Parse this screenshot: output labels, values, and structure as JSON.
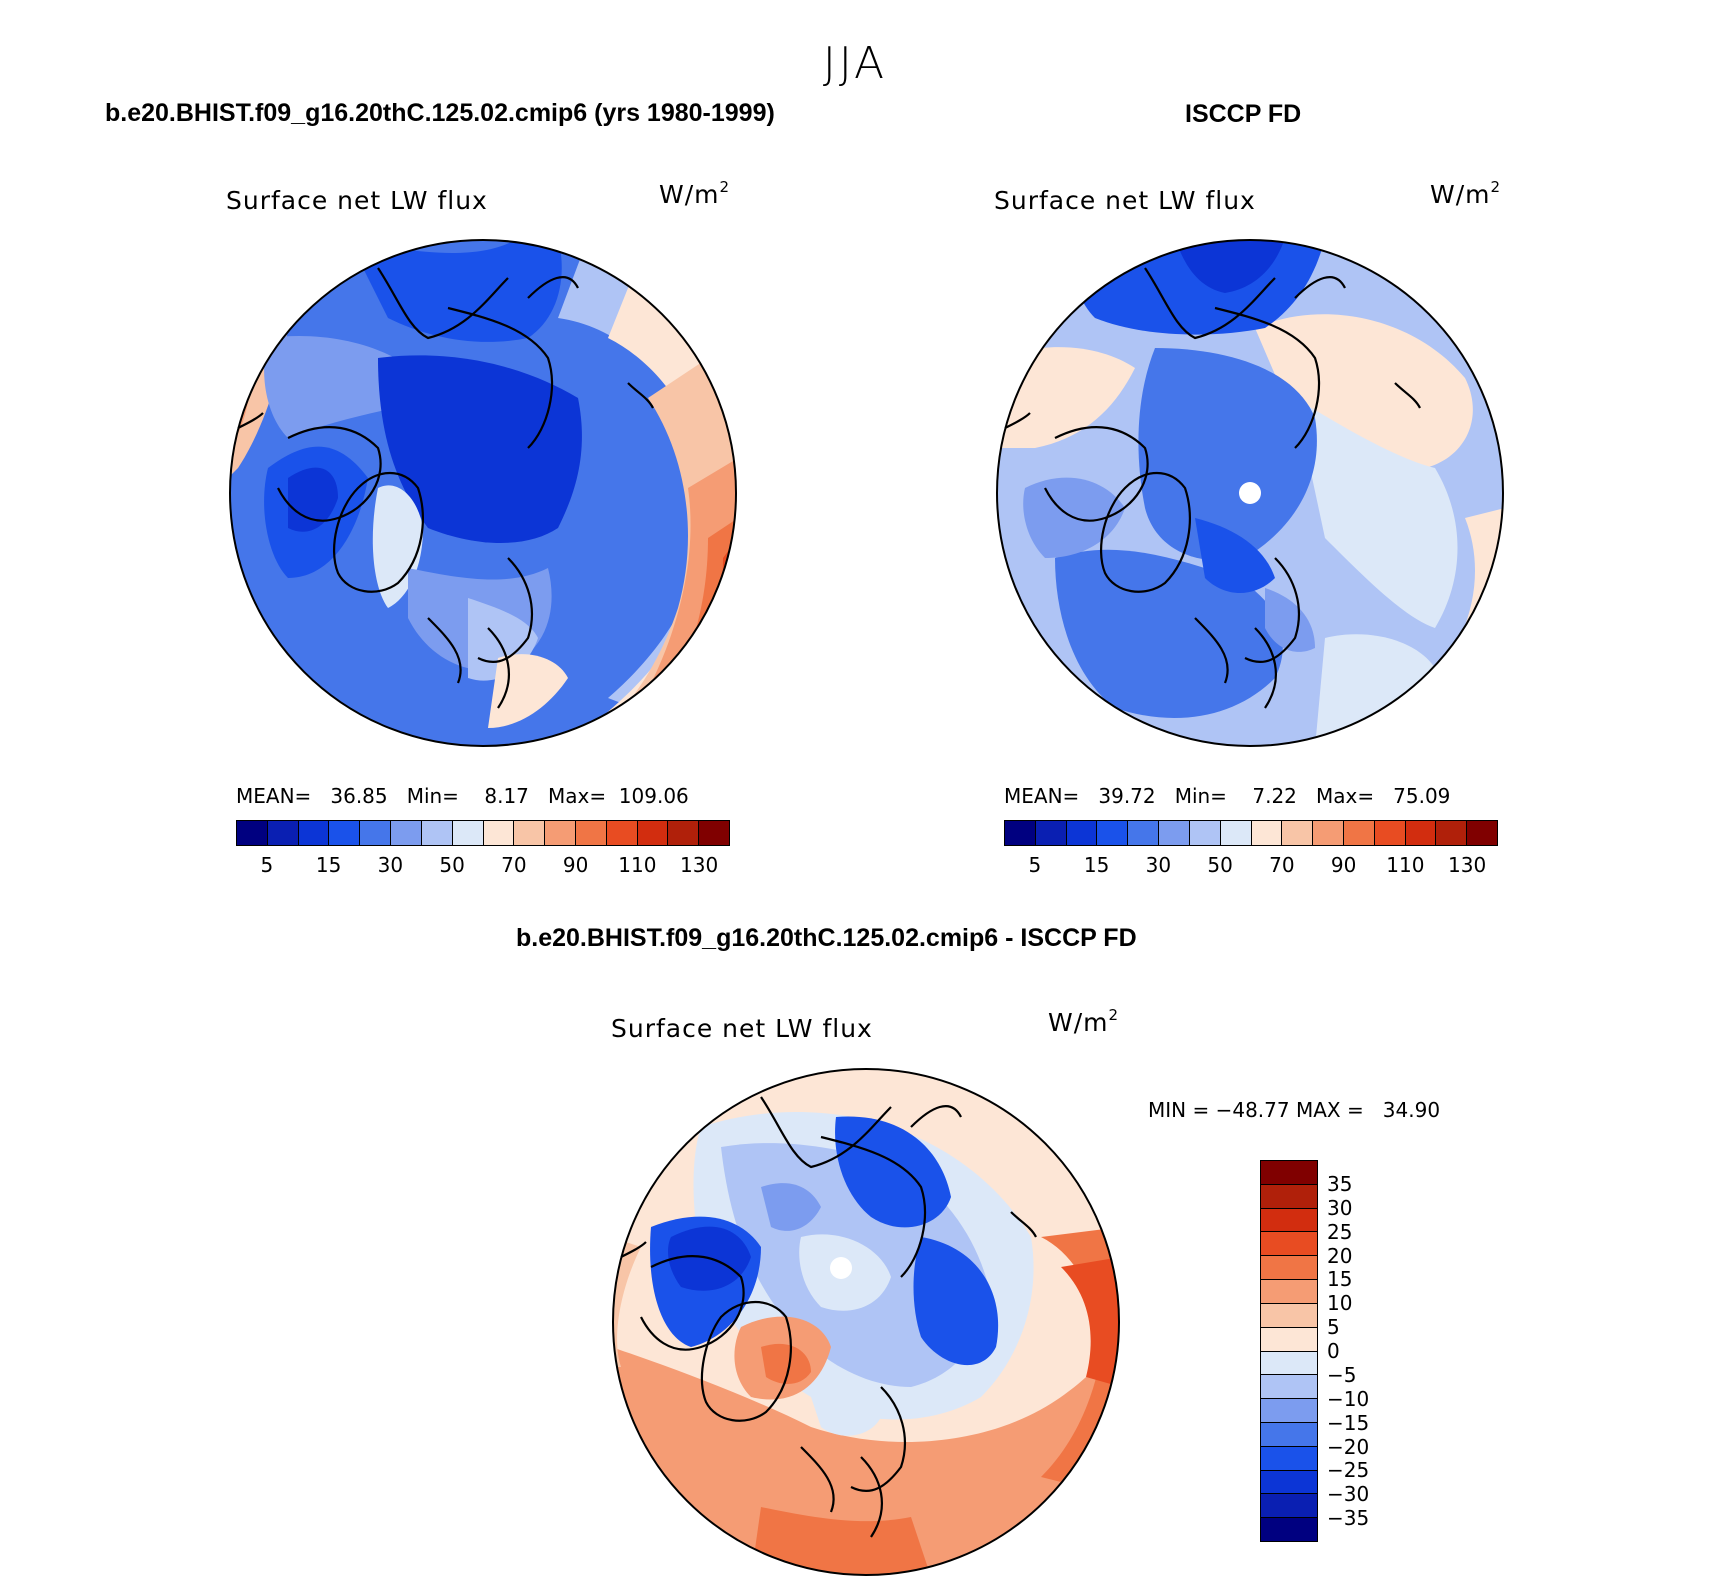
{
  "figure_title": "JJA",
  "panels": [
    {
      "title": "b.e20.BHIST.f09_g16.20thC.125.02.cmip6 (yrs 1980-1999)",
      "variable": "Surface net LW flux",
      "units": "W/m",
      "units_sup": "2",
      "stats_text": "MEAN=   36.85   Min=    8.17   Max=  109.06",
      "mean": 36.85,
      "min": 8.17,
      "max": 109.06
    },
    {
      "title": "ISCCP FD",
      "variable": "Surface net LW flux",
      "units": "W/m",
      "units_sup": "2",
      "stats_text": "MEAN=   39.72   Min=    7.22   Max=   75.09",
      "mean": 39.72,
      "min": 7.22,
      "max": 75.09
    },
    {
      "title": "b.e20.BHIST.f09_g16.20thC.125.02.cmip6 - ISCCP FD",
      "variable": "Surface net LW flux",
      "units": "W/m",
      "units_sup": "2",
      "stats_text": "MIN = −48.77 MAX =   34.90",
      "min": -48.77,
      "max": 34.9
    }
  ],
  "abs_colorbar": {
    "colors": [
      "#000080",
      "#0a1fb2",
      "#0c35d6",
      "#1a52ea",
      "#4576ea",
      "#7c9cef",
      "#afc4f5",
      "#dce8f8",
      "#fde6d6",
      "#f8c5a7",
      "#f59c74",
      "#f07545",
      "#e84c22",
      "#d22d0f",
      "#b0200a",
      "#800000"
    ],
    "tick_labels": [
      "5",
      "15",
      "30",
      "50",
      "70",
      "90",
      "110",
      "130"
    ]
  },
  "diff_colorbar": {
    "colors": [
      "#800000",
      "#b0200a",
      "#d22d0f",
      "#e84c22",
      "#f07545",
      "#f59c74",
      "#f8c5a7",
      "#fde6d6",
      "#dce8f8",
      "#afc4f5",
      "#7c9cef",
      "#4576ea",
      "#1a52ea",
      "#0c35d6",
      "#0a1fb2",
      "#000080"
    ],
    "tick_labels": [
      "35",
      "30",
      "25",
      "20",
      "15",
      "10",
      "5",
      "0",
      "−5",
      "−10",
      "−15",
      "−20",
      "−25",
      "−30",
      "−35"
    ]
  },
  "map_colors": {
    "deep_blue": "#0c35d6",
    "mid_blue": "#1a52ea",
    "blue": "#4576ea",
    "light_blue": "#7c9cef",
    "pale_blue": "#afc4f5",
    "very_pale_blue": "#dce8f8",
    "cream": "#fde6d6",
    "peach": "#f8c5a7",
    "salmon": "#f59c74",
    "orange": "#f07545",
    "red_orange": "#e84c22"
  }
}
